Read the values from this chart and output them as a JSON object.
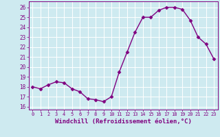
{
  "x": [
    0,
    1,
    2,
    3,
    4,
    5,
    6,
    7,
    8,
    9,
    10,
    11,
    12,
    13,
    14,
    15,
    16,
    17,
    18,
    19,
    20,
    21,
    22,
    23
  ],
  "y": [
    18.0,
    17.8,
    18.2,
    18.5,
    18.4,
    17.8,
    17.5,
    16.8,
    16.7,
    16.5,
    17.0,
    19.5,
    21.5,
    23.5,
    25.0,
    25.0,
    25.7,
    26.0,
    26.0,
    25.8,
    24.7,
    23.0,
    22.3,
    20.8
  ],
  "line_color": "#800080",
  "marker": "D",
  "markersize": 2.5,
  "linewidth": 1.0,
  "bg_color": "#ceeaf0",
  "grid_color": "#ffffff",
  "tick_color": "#800080",
  "xlabel": "Windchill (Refroidissement éolien,°C)",
  "xlabel_fontsize": 6.5,
  "ylabel_ticks": [
    16,
    17,
    18,
    19,
    20,
    21,
    22,
    23,
    24,
    25,
    26
  ],
  "xlim": [
    -0.5,
    23.5
  ],
  "ylim": [
    15.7,
    26.6
  ],
  "xticks": [
    0,
    1,
    2,
    3,
    4,
    5,
    6,
    7,
    8,
    9,
    10,
    11,
    12,
    13,
    14,
    15,
    16,
    17,
    18,
    19,
    20,
    21,
    22,
    23
  ]
}
